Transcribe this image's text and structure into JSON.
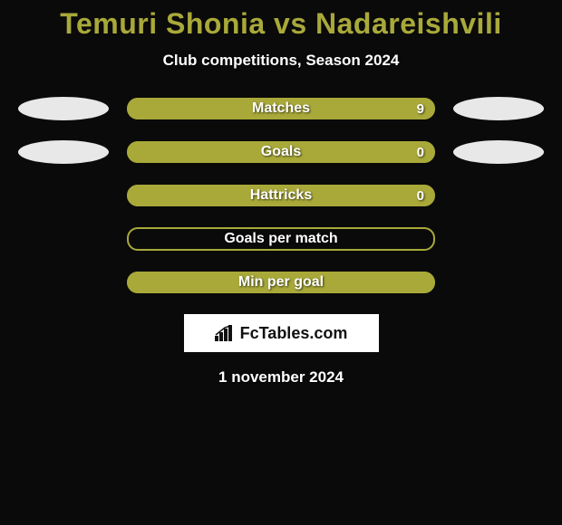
{
  "title": "Temuri Shonia vs Nadareishvili",
  "subtitle": "Club competitions, Season 2024",
  "date": "1 november 2024",
  "logo_text": "FcTables.com",
  "colors": {
    "background": "#0a0a0a",
    "accent": "#a9a93a",
    "bar_track": "#7c7c2a",
    "ellipse": "#e8e8e8",
    "text_light": "#ffffff",
    "logo_bg": "#ffffff",
    "logo_text": "#111111"
  },
  "rows": [
    {
      "label": "Matches",
      "value_right": "9",
      "fill_pct": 100,
      "show_ellipses": true,
      "outline": false
    },
    {
      "label": "Goals",
      "value_right": "0",
      "fill_pct": 100,
      "show_ellipses": true,
      "outline": false
    },
    {
      "label": "Hattricks",
      "value_right": "0",
      "fill_pct": 100,
      "show_ellipses": false,
      "outline": false
    },
    {
      "label": "Goals per match",
      "value_right": "",
      "fill_pct": 0,
      "show_ellipses": false,
      "outline": true
    },
    {
      "label": "Min per goal",
      "value_right": "",
      "fill_pct": 100,
      "show_ellipses": false,
      "outline": false
    }
  ]
}
